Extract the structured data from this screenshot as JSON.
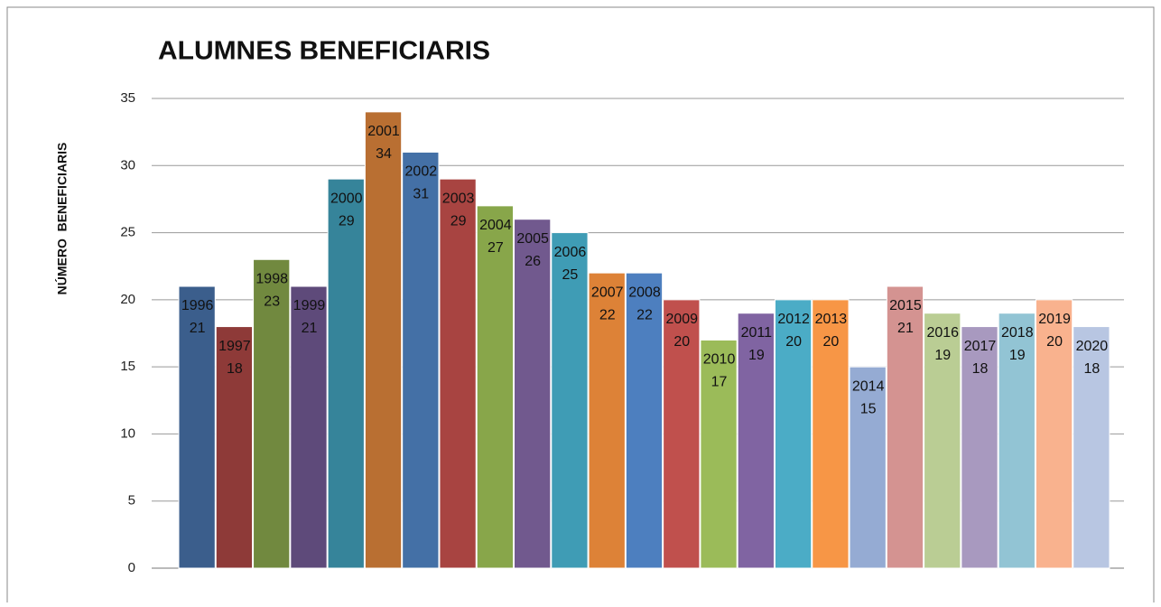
{
  "chart_data": {
    "type": "bar",
    "title": "ALUMNES BENEFICIARIS",
    "y_label": "NÚMERO  BENEFICIARIS",
    "categories": [
      "1996",
      "1997",
      "1998",
      "1999",
      "2000",
      "2001",
      "2002",
      "2003",
      "2004",
      "2005",
      "2006",
      "2007",
      "2008",
      "2009",
      "2010",
      "2011",
      "2012",
      "2013",
      "2014",
      "2015",
      "2016",
      "2017",
      "2018",
      "2019",
      "2020"
    ],
    "values": [
      21,
      18,
      23,
      21,
      29,
      34,
      31,
      29,
      27,
      26,
      25,
      22,
      22,
      20,
      17,
      19,
      20,
      20,
      15,
      21,
      19,
      18,
      19,
      20,
      18
    ],
    "colors": [
      "#3b5e8c",
      "#8e3a38",
      "#71893f",
      "#5e4a7a",
      "#36849a",
      "#b96f32",
      "#4470a6",
      "#a84441",
      "#88a64a",
      "#71598e",
      "#3f9cb5",
      "#dd8237",
      "#4d7fbf",
      "#c0504d",
      "#9bbb59",
      "#8064a2",
      "#4bacc6",
      "#f79646",
      "#95abd3",
      "#d49391",
      "#bacd94",
      "#a899bf",
      "#92c4d4",
      "#f9b28e",
      "#b8c6e2"
    ],
    "ylim": [
      0,
      35
    ],
    "yticks": [
      0,
      5,
      10,
      15,
      20,
      25,
      30,
      35
    ],
    "grid": true
  }
}
